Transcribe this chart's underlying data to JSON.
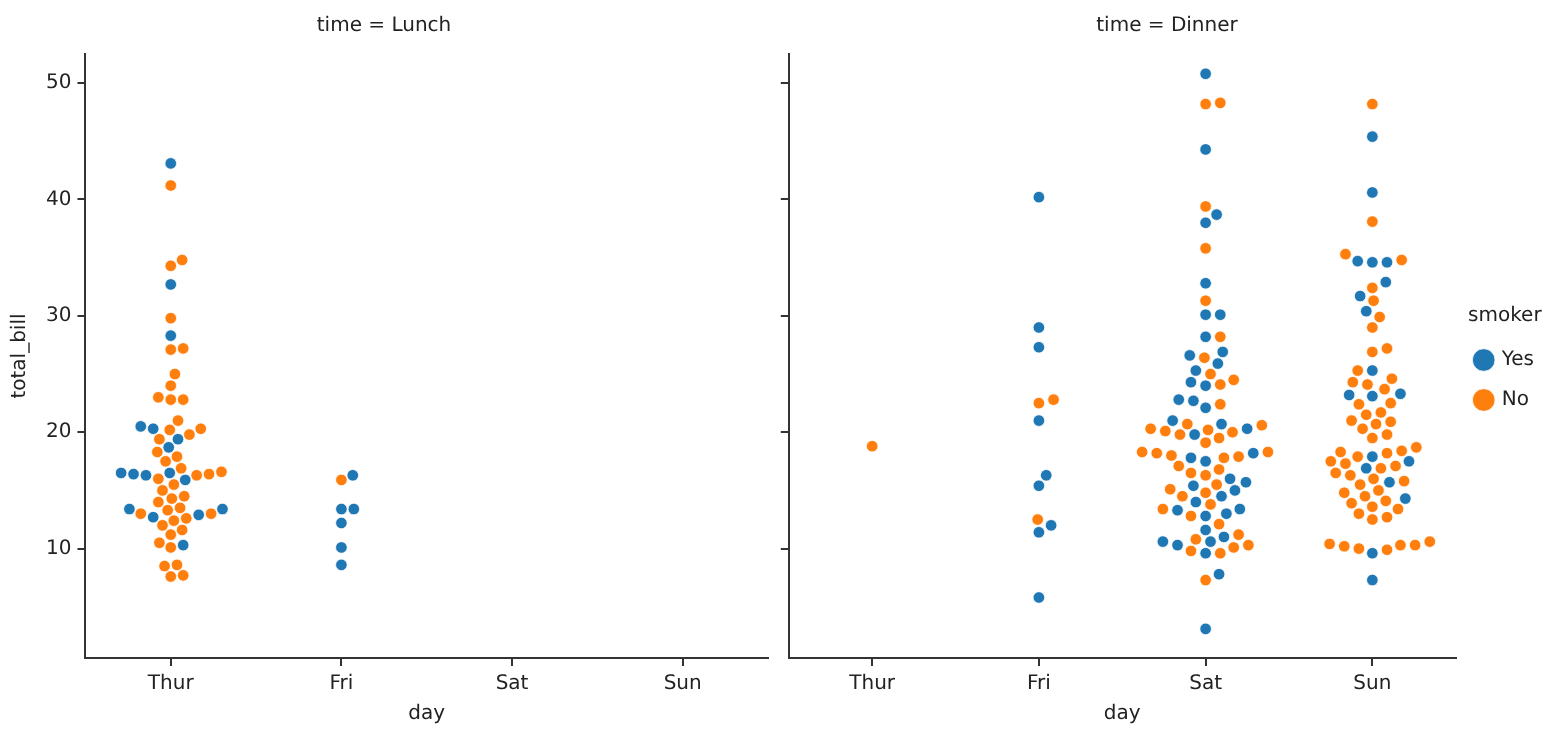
{
  "chart_data": [
    {
      "type": "scatter",
      "title": "time = Lunch",
      "xlabel": "day",
      "ylabel": "total_bill",
      "categories": [
        "Thur",
        "Fri",
        "Sat",
        "Sun"
      ],
      "ylim": [
        0.6,
        52.5
      ],
      "yticks": [
        10,
        20,
        30,
        40,
        50
      ],
      "marker": "circle",
      "series": [
        {
          "color": "#1f77b4",
          "x": [
            "Thur",
            "Thur",
            "Thur",
            "Thur",
            "Thur",
            "Thur",
            "Thur",
            "Thur",
            "Thur",
            "Thur",
            "Thur",
            "Thur",
            "Thur",
            "Thur",
            "Thur",
            "Thur",
            "Thur",
            "Fri",
            "Fri",
            "Fri",
            "Fri",
            "Fri",
            "Fri"
          ],
          "values": [
            43.1,
            32.7,
            28.3,
            20.5,
            20.3,
            19.4,
            18.7,
            16.5,
            16.5,
            16.4,
            16.3,
            15.9,
            13.4,
            13.4,
            12.9,
            12.7,
            10.3,
            16.3,
            13.4,
            13.4,
            12.2,
            10.1,
            8.6
          ]
        },
        {
          "color": "#ff7f0e",
          "x": [
            "Thur",
            "Thur",
            "Thur",
            "Thur",
            "Thur",
            "Thur",
            "Thur",
            "Thur",
            "Thur",
            "Thur",
            "Thur",
            "Thur",
            "Thur",
            "Thur",
            "Thur",
            "Thur",
            "Thur",
            "Thur",
            "Thur",
            "Thur",
            "Thur",
            "Thur",
            "Thur",
            "Thur",
            "Thur",
            "Thur",
            "Thur",
            "Thur",
            "Thur",
            "Thur",
            "Thur",
            "Thur",
            "Thur",
            "Thur",
            "Thur",
            "Thur",
            "Thur",
            "Thur",
            "Thur",
            "Thur",
            "Thur",
            "Thur",
            "Thur",
            "Thur",
            "Fri"
          ],
          "values": [
            41.2,
            34.8,
            34.3,
            29.8,
            27.2,
            27.1,
            25.0,
            24.0,
            23.0,
            22.8,
            22.8,
            21.0,
            20.3,
            20.2,
            19.8,
            19.4,
            18.3,
            17.9,
            17.5,
            16.9,
            16.6,
            16.4,
            16.3,
            16.0,
            15.5,
            15.0,
            14.5,
            14.3,
            14.0,
            13.5,
            13.3,
            13.0,
            13.0,
            12.6,
            12.4,
            12.0,
            11.6,
            11.2,
            10.5,
            10.1,
            8.6,
            8.5,
            7.7,
            7.6,
            15.9
          ]
        }
      ]
    },
    {
      "type": "scatter",
      "title": "time = Dinner",
      "xlabel": "day",
      "categories": [
        "Thur",
        "Fri",
        "Sat",
        "Sun"
      ],
      "ylim": [
        0.6,
        52.5
      ],
      "yticks": [
        10,
        20,
        30,
        40,
        50
      ],
      "tick_labels": "x",
      "marker": "circle",
      "legend": "right",
      "legend_title": "smoker",
      "series": [
        {
          "name": "Yes",
          "color": "#1f77b4",
          "x": [
            "Fri",
            "Fri",
            "Fri",
            "Fri",
            "Fri",
            "Fri",
            "Fri",
            "Fri",
            "Fri",
            "Sat",
            "Sat",
            "Sat",
            "Sat",
            "Sat",
            "Sat",
            "Sat",
            "Sat",
            "Sat",
            "Sat",
            "Sat",
            "Sat",
            "Sat",
            "Sat",
            "Sat",
            "Sat",
            "Sat",
            "Sat",
            "Sat",
            "Sat",
            "Sat",
            "Sat",
            "Sat",
            "Sat",
            "Sat",
            "Sat",
            "Sat",
            "Sat",
            "Sat",
            "Sat",
            "Sat",
            "Sat",
            "Sat",
            "Sat",
            "Sat",
            "Sat",
            "Sat",
            "Sat",
            "Sat",
            "Sat",
            "Sat",
            "Sat",
            "Sun",
            "Sun",
            "Sun",
            "Sun",
            "Sun",
            "Sun",
            "Sun",
            "Sun",
            "Sun",
            "Sun",
            "Sun",
            "Sun",
            "Sun",
            "Sun",
            "Sun",
            "Sun",
            "Sun",
            "Sun",
            "Sun"
          ],
          "values": [
            40.2,
            29.0,
            27.3,
            21.0,
            16.3,
            15.4,
            12.0,
            11.4,
            5.8,
            50.8,
            44.3,
            38.7,
            38.0,
            32.8,
            30.1,
            30.1,
            28.2,
            26.9,
            26.6,
            25.9,
            25.3,
            24.3,
            24.0,
            22.8,
            22.7,
            22.1,
            21.0,
            20.7,
            20.3,
            19.8,
            18.2,
            17.8,
            17.5,
            16.0,
            15.7,
            15.4,
            15.0,
            14.5,
            14.0,
            13.4,
            13.3,
            13.0,
            12.8,
            11.6,
            11.0,
            10.6,
            10.6,
            10.3,
            9.6,
            7.8,
            3.1,
            45.4,
            40.6,
            34.7,
            34.6,
            34.6,
            32.9,
            31.7,
            30.4,
            25.3,
            23.3,
            23.2,
            23.1,
            17.9,
            17.5,
            16.9,
            15.7,
            14.3,
            9.6,
            7.3
          ]
        },
        {
          "name": "No",
          "color": "#ff7f0e",
          "x": [
            "Thur",
            "Fri",
            "Fri",
            "Fri",
            "Sat",
            "Sat",
            "Sat",
            "Sat",
            "Sat",
            "Sat",
            "Sat",
            "Sat",
            "Sat",
            "Sat",
            "Sat",
            "Sat",
            "Sat",
            "Sat",
            "Sat",
            "Sat",
            "Sat",
            "Sat",
            "Sat",
            "Sat",
            "Sat",
            "Sat",
            "Sat",
            "Sat",
            "Sat",
            "Sat",
            "Sat",
            "Sat",
            "Sat",
            "Sat",
            "Sat",
            "Sat",
            "Sat",
            "Sat",
            "Sat",
            "Sat",
            "Sat",
            "Sat",
            "Sat",
            "Sat",
            "Sat",
            "Sat",
            "Sat",
            "Sat",
            "Sat",
            "Sun",
            "Sun",
            "Sun",
            "Sun",
            "Sun",
            "Sun",
            "Sun",
            "Sun",
            "Sun",
            "Sun",
            "Sun",
            "Sun",
            "Sun",
            "Sun",
            "Sun",
            "Sun",
            "Sun",
            "Sun",
            "Sun",
            "Sun",
            "Sun",
            "Sun",
            "Sun",
            "Sun",
            "Sun",
            "Sun",
            "Sun",
            "Sun",
            "Sun",
            "Sun",
            "Sun",
            "Sun",
            "Sun",
            "Sun",
            "Sun",
            "Sun",
            "Sun",
            "Sun",
            "Sun",
            "Sun",
            "Sun",
            "Sun",
            "Sun",
            "Sun",
            "Sun",
            "Sun",
            "Sun",
            "Sun",
            "Sun",
            "Sun",
            "Sun",
            "Sun",
            "Sun",
            "Sun",
            "Sun",
            "Sun"
          ],
          "values": [
            18.8,
            22.8,
            22.5,
            12.5,
            48.3,
            48.2,
            39.4,
            35.8,
            31.3,
            28.2,
            26.4,
            25.0,
            24.1,
            24.5,
            22.4,
            20.7,
            20.6,
            20.3,
            20.2,
            20.1,
            20.0,
            19.8,
            19.5,
            19.1,
            18.3,
            18.3,
            18.2,
            18.0,
            17.9,
            17.8,
            17.1,
            16.8,
            16.5,
            16.3,
            15.5,
            15.1,
            14.8,
            14.5,
            13.8,
            13.4,
            12.8,
            12.1,
            11.2,
            10.8,
            10.3,
            10.1,
            9.8,
            9.6,
            7.3,
            48.2,
            38.1,
            35.3,
            34.8,
            32.4,
            31.3,
            29.9,
            29.0,
            27.2,
            26.9,
            25.3,
            24.6,
            24.3,
            24.1,
            23.7,
            22.5,
            22.4,
            21.7,
            21.5,
            21.0,
            20.9,
            20.7,
            20.3,
            19.8,
            19.5,
            18.7,
            18.4,
            18.3,
            18.2,
            17.9,
            17.5,
            17.3,
            17.1,
            16.9,
            16.5,
            16.3,
            16.0,
            15.8,
            15.5,
            15.0,
            14.8,
            14.5,
            14.1,
            13.9,
            13.6,
            13.4,
            13.0,
            12.7,
            12.5,
            10.6,
            10.4,
            10.3,
            10.3,
            10.2,
            10.0,
            9.9
          ]
        }
      ]
    }
  ]
}
